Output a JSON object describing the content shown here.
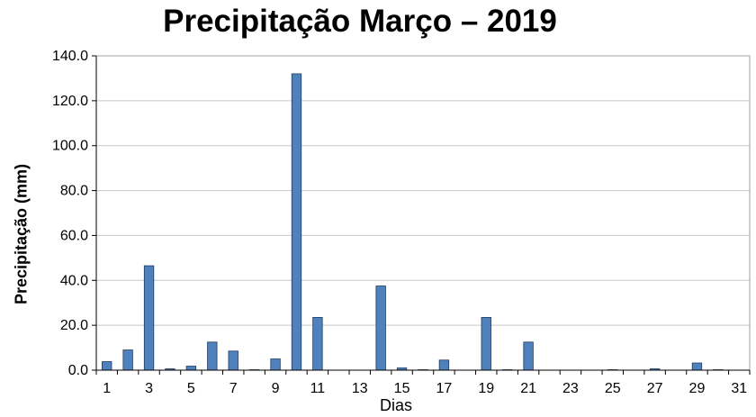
{
  "chart_data": {
    "type": "bar",
    "title": "Precipitação Março – 2019",
    "xlabel": "Dias",
    "ylabel": "Precipitação (mm)",
    "ylim": [
      0,
      140
    ],
    "y_ticks": [
      "0.0",
      "20.0",
      "40.0",
      "60.0",
      "80.0",
      "100.0",
      "120.0",
      "140.0"
    ],
    "x_tick_labels": [
      "1",
      "3",
      "5",
      "7",
      "9",
      "11",
      "13",
      "15",
      "17",
      "19",
      "21",
      "23",
      "25",
      "27",
      "29",
      "31"
    ],
    "categories": [
      1,
      2,
      3,
      4,
      5,
      6,
      7,
      8,
      9,
      10,
      11,
      12,
      13,
      14,
      15,
      16,
      17,
      18,
      19,
      20,
      21,
      22,
      23,
      24,
      25,
      26,
      27,
      28,
      29,
      30,
      31
    ],
    "values": [
      3.8,
      9.0,
      46.5,
      0.6,
      1.8,
      12.5,
      8.5,
      0.2,
      5.0,
      132.0,
      23.5,
      0,
      0,
      37.5,
      1.0,
      0.2,
      4.5,
      0,
      23.5,
      0.2,
      12.5,
      0,
      0,
      0,
      0.2,
      0,
      0.6,
      0,
      3.2,
      0.2,
      0
    ],
    "grid": true,
    "bar_color": "#4f81bd"
  }
}
